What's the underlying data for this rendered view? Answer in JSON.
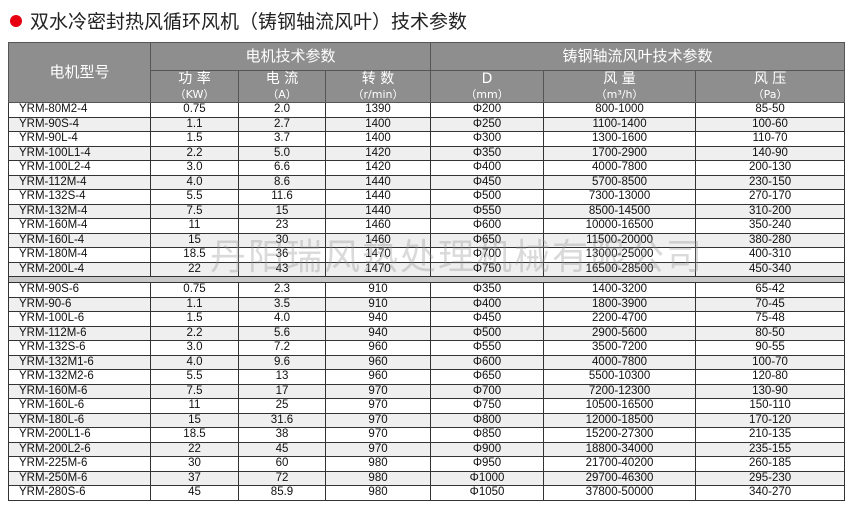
{
  "title": "双水冷密封热风循环风机（铸钢轴流风叶）技术参数",
  "watermark": "丹阳瑞风热处理机械有限公司",
  "colors": {
    "bullet": "#e60012",
    "header_bg": "#8e8e8e"
  },
  "header": {
    "model": "电机型号",
    "motor_group": "电机技术参数",
    "fan_group": "铸钢轴流风叶技术参数",
    "columns": [
      {
        "label": "功 率",
        "unit": "（KW）"
      },
      {
        "label": "电 流",
        "unit": "（A）"
      },
      {
        "label": "转 数",
        "unit": "（r/min）"
      },
      {
        "label": "D",
        "unit": "（mm）"
      },
      {
        "label": "风 量",
        "unit": "（m³/h）"
      },
      {
        "label": "风 压",
        "unit": "（Pa）"
      }
    ]
  },
  "groups": [
    [
      [
        "YRM-80M2-4",
        "0.75",
        "2.0",
        "1390",
        "Φ200",
        "800-1000",
        "85-50"
      ],
      [
        "YRM-90S-4",
        "1.1",
        "2.7",
        "1400",
        "Φ250",
        "1100-1400",
        "100-60"
      ],
      [
        "YRM-90L-4",
        "1.5",
        "3.7",
        "1400",
        "Φ300",
        "1300-1600",
        "110-70"
      ],
      [
        "YRM-100L1-4",
        "2.2",
        "5.0",
        "1420",
        "Φ350",
        "1700-2900",
        "140-90"
      ],
      [
        "YRM-100L2-4",
        "3.0",
        "6.6",
        "1420",
        "Φ400",
        "4000-7800",
        "200-130"
      ],
      [
        "YRM-112M-4",
        "4.0",
        "8.6",
        "1440",
        "Φ450",
        "5700-8500",
        "230-150"
      ],
      [
        "YRM-132S-4",
        "5.5",
        "11.6",
        "1440",
        "Φ500",
        "7300-13000",
        "270-170"
      ],
      [
        "YRM-132M-4",
        "7.5",
        "15",
        "1440",
        "Φ550",
        "8500-14500",
        "310-200"
      ],
      [
        "YRM-160M-4",
        "11",
        "23",
        "1460",
        "Φ600",
        "10000-16500",
        "350-240"
      ],
      [
        "YRM-160L-4",
        "15",
        "30",
        "1460",
        "Φ650",
        "11500-20000",
        "380-280"
      ],
      [
        "YRM-180M-4",
        "18.5",
        "36",
        "1470",
        "Φ700",
        "13000-25000",
        "400-310"
      ],
      [
        "YRM-200L-4",
        "22",
        "43",
        "1470",
        "Φ750",
        "16500-28500",
        "450-340"
      ]
    ],
    [
      [
        "YRM-90S-6",
        "0.75",
        "2.3",
        "910",
        "Φ350",
        "1400-3200",
        "65-42"
      ],
      [
        "YRM-90-6",
        "1.1",
        "3.5",
        "910",
        "Φ400",
        "1800-3900",
        "70-45"
      ],
      [
        "YRM-100L-6",
        "1.5",
        "4.0",
        "940",
        "Φ450",
        "2200-4700",
        "75-48"
      ],
      [
        "YRM-112M-6",
        "2.2",
        "5.6",
        "940",
        "Φ500",
        "2900-5600",
        "80-50"
      ],
      [
        "YRM-132S-6",
        "3.0",
        "7.2",
        "960",
        "Φ550",
        "3500-7200",
        "90-55"
      ],
      [
        "YRM-132M1-6",
        "4.0",
        "9.6",
        "960",
        "Φ600",
        "4000-7800",
        "100-70"
      ],
      [
        "YRM-132M2-6",
        "5.5",
        "13",
        "960",
        "Φ650",
        "5500-10300",
        "120-80"
      ],
      [
        "YRM-160M-6",
        "7.5",
        "17",
        "970",
        "Φ700",
        "7200-12300",
        "130-90"
      ],
      [
        "YRM-160L-6",
        "11",
        "25",
        "970",
        "Φ750",
        "10500-16500",
        "150-110"
      ],
      [
        "YRM-180L-6",
        "15",
        "31.6",
        "970",
        "Φ800",
        "12000-18500",
        "170-120"
      ],
      [
        "YRM-200L1-6",
        "18.5",
        "38",
        "970",
        "Φ850",
        "15200-27300",
        "210-135"
      ],
      [
        "YRM-200L2-6",
        "22",
        "45",
        "970",
        "Φ900",
        "18800-34000",
        "235-155"
      ],
      [
        "YRM-225M-6",
        "30",
        "60",
        "980",
        "Φ950",
        "21700-40200",
        "260-185"
      ],
      [
        "YRM-250M-6",
        "37",
        "72",
        "980",
        "Φ1000",
        "29700-46300",
        "295-230"
      ],
      [
        "YRM-280S-6",
        "45",
        "85.9",
        "980",
        "Φ1050",
        "37800-50000",
        "340-270"
      ]
    ]
  ]
}
